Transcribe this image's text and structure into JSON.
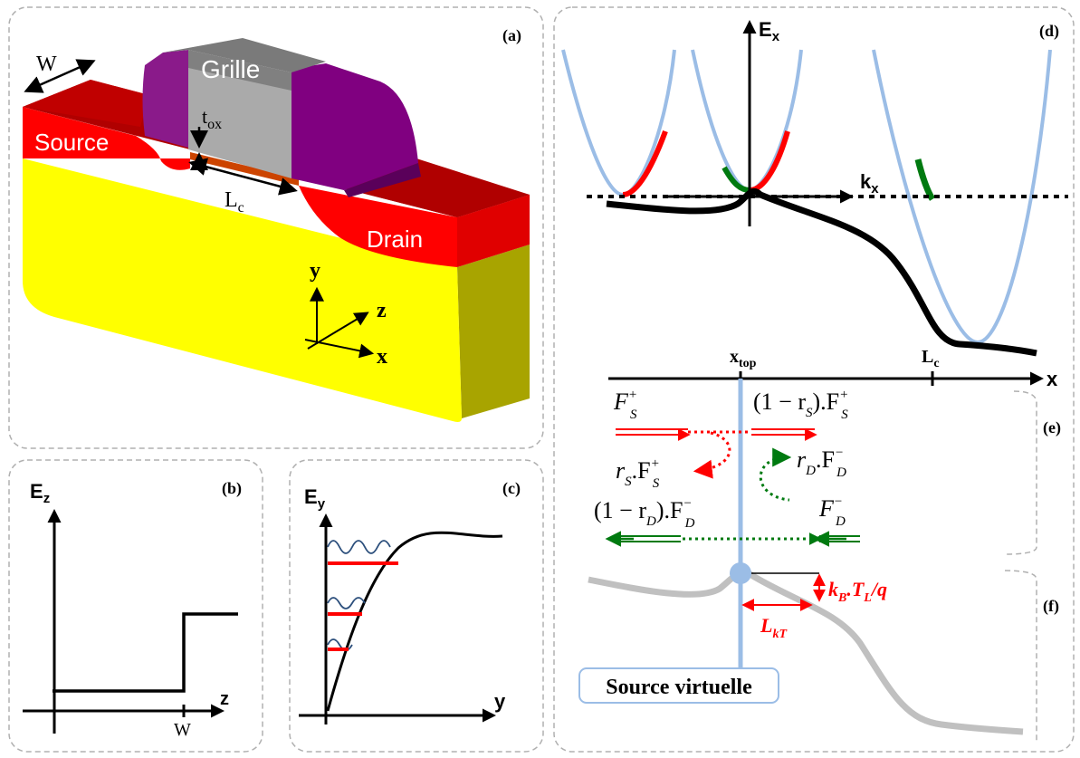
{
  "panels": {
    "a": "(a)",
    "b": "(b)",
    "c": "(c)",
    "d": "(d)",
    "e": "(e)",
    "f": "(f)"
  },
  "device": {
    "gate": "Grille",
    "source": "Source",
    "drain": "Drain",
    "width": "W",
    "tox_main": "t",
    "tox_sub": "ox",
    "lc_main": "L",
    "lc_sub": "c",
    "axis_x": "x",
    "axis_y": "y",
    "axis_z": "z"
  },
  "panel_b": {
    "y_main": "E",
    "y_sub": "z",
    "x_label": "z",
    "tick": "W"
  },
  "panel_c": {
    "y_main": "E",
    "y_sub": "y",
    "x_label": "y"
  },
  "panel_d": {
    "y_main": "E",
    "y_sub": "x",
    "k_main": "k",
    "k_sub": "x",
    "xtop_main": "x",
    "xtop_sub": "top",
    "lc_main": "L",
    "lc_sub": "c",
    "x_label": "x"
  },
  "flux": {
    "fs_plus": "F",
    "fs_plus_sub": "S",
    "fs_plus_sup": "+",
    "trans_s": "(1 − r",
    "trans_s_sub": "S",
    "trans_s_end": ").F",
    "trans_s_fsub": "S",
    "trans_s_fsup": "+",
    "refl_s": "r",
    "refl_s_sub": "S",
    "refl_s_mid": ".F",
    "refl_s_fsub": "S",
    "refl_s_fsup": "+",
    "refl_d": "r",
    "refl_d_sub": "D",
    "refl_d_mid": ".F",
    "refl_d_fsub": "D",
    "refl_d_fsup": "−",
    "trans_d": "(1 − r",
    "trans_d_sub": "D",
    "trans_d_end": ").F",
    "trans_d_fsub": "D",
    "trans_d_fsup": "−",
    "fd_minus": "F",
    "fd_minus_sub": "D",
    "fd_minus_sup": "−"
  },
  "barrier": {
    "kbt_k": "k",
    "kbt_ksub": "B",
    "kbt_t": ".T",
    "kbt_tsub": "L",
    "kbt_q": "/q",
    "lkt_main": "L",
    "lkt_sub": "kT",
    "virtual_source": "Source virtuelle"
  },
  "colors": {
    "red": "#ff0000",
    "dark_red": "#b00000",
    "yellow": "#ffff00",
    "olive": "#a8a400",
    "purple": "#800080",
    "gate_gray": "#aaaaaa",
    "band_blue": "#9bbde6",
    "green": "#007a10"
  }
}
